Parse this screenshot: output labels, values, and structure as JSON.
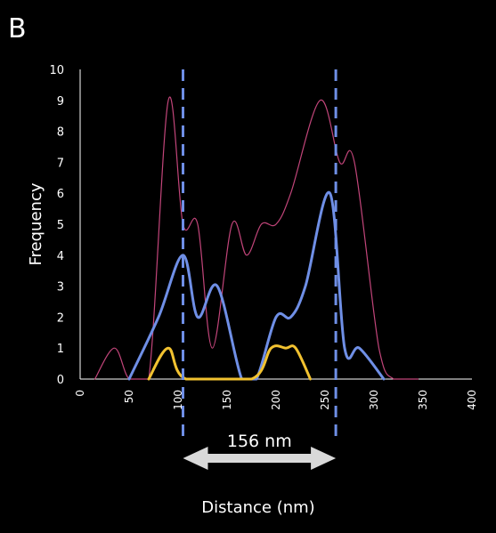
{
  "panel_label": "B",
  "chart_data": {
    "type": "line",
    "title": "",
    "xlabel": "Distance (nm)",
    "ylabel": "Frequency",
    "xlim": [
      0,
      400
    ],
    "ylim": [
      0,
      10
    ],
    "x_ticks": [
      0,
      50,
      100,
      150,
      200,
      250,
      300,
      350,
      400
    ],
    "y_ticks": [
      0,
      1,
      2,
      3,
      4,
      5,
      6,
      7,
      8,
      9,
      10
    ],
    "grid": false,
    "legend": "none",
    "series": [
      {
        "color": "#c2457a",
        "width": 1.2,
        "points": [
          [
            15,
            0
          ],
          [
            35,
            1
          ],
          [
            50,
            0
          ],
          [
            70,
            0
          ],
          [
            90,
            9
          ],
          [
            105,
            5
          ],
          [
            120,
            5
          ],
          [
            135,
            1
          ],
          [
            155,
            5
          ],
          [
            170,
            4
          ],
          [
            185,
            5
          ],
          [
            200,
            5
          ],
          [
            215,
            6
          ],
          [
            245,
            9
          ],
          [
            265,
            7
          ],
          [
            280,
            7
          ],
          [
            305,
            1
          ],
          [
            320,
            0
          ],
          [
            345,
            0
          ]
        ]
      },
      {
        "color": "#6f8fe6",
        "width": 3,
        "points": [
          [
            50,
            0
          ],
          [
            80,
            2
          ],
          [
            105,
            4
          ],
          [
            120,
            2
          ],
          [
            140,
            3
          ],
          [
            165,
            0
          ],
          [
            180,
            0
          ],
          [
            200,
            2
          ],
          [
            215,
            2
          ],
          [
            230,
            3
          ],
          [
            255,
            6
          ],
          [
            270,
            1
          ],
          [
            285,
            1
          ],
          [
            310,
            0
          ]
        ]
      },
      {
        "color": "#f2c230",
        "width": 3,
        "points": [
          [
            70,
            0
          ],
          [
            90,
            1
          ],
          [
            108,
            0
          ],
          [
            175,
            0
          ],
          [
            195,
            1
          ],
          [
            210,
            1
          ],
          [
            220,
            1
          ],
          [
            235,
            0
          ]
        ]
      }
    ],
    "markers": {
      "dashed_lines_x": [
        105,
        261
      ],
      "color": "#6f8fe6"
    },
    "annotation": {
      "text": "156 nm",
      "from_x": 105,
      "to_x": 261
    }
  }
}
